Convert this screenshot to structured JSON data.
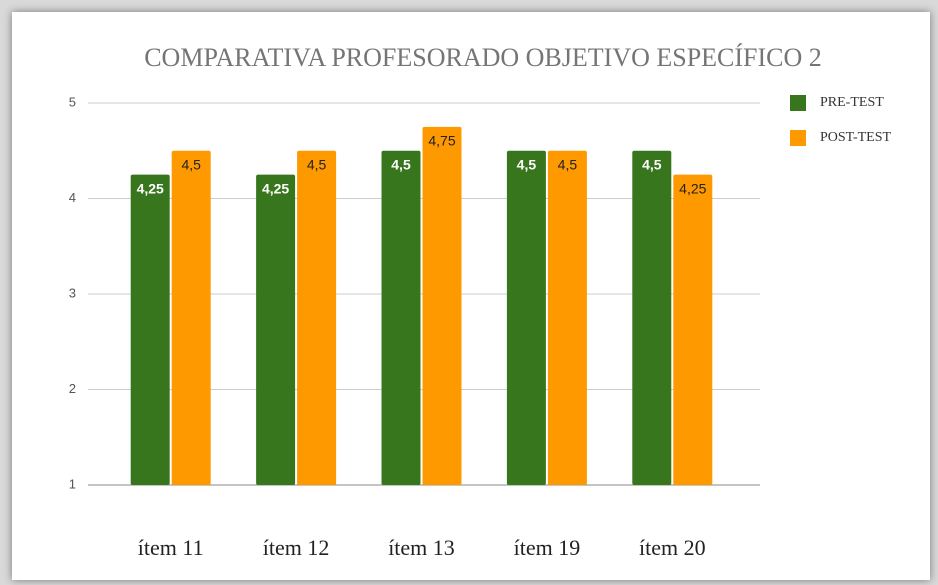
{
  "chart_data": {
    "type": "bar",
    "title": "COMPARATIVA PROFESORADO OBJETIVO ESPECÍFICO 2",
    "categories": [
      "ítem 11",
      "ítem 12",
      "ítem 13",
      "ítem 19",
      "ítem 20"
    ],
    "series": [
      {
        "name": "PRE-TEST",
        "color": "#38761d",
        "values": [
          4.25,
          4.25,
          4.5,
          4.5,
          4.5
        ],
        "value_labels": [
          "4,25",
          "4,25",
          "4,5",
          "4,5",
          "4,5"
        ]
      },
      {
        "name": "POST-TEST",
        "color": "#ff9900",
        "values": [
          4.5,
          4.5,
          4.75,
          4.5,
          4.25
        ],
        "value_labels": [
          "4,5",
          "4,5",
          "4,75",
          "4,5",
          "4,25"
        ]
      }
    ],
    "ylim": [
      1,
      5
    ],
    "yticks": [
      1,
      2,
      3,
      4,
      5
    ],
    "grid": true,
    "legend": "right"
  }
}
